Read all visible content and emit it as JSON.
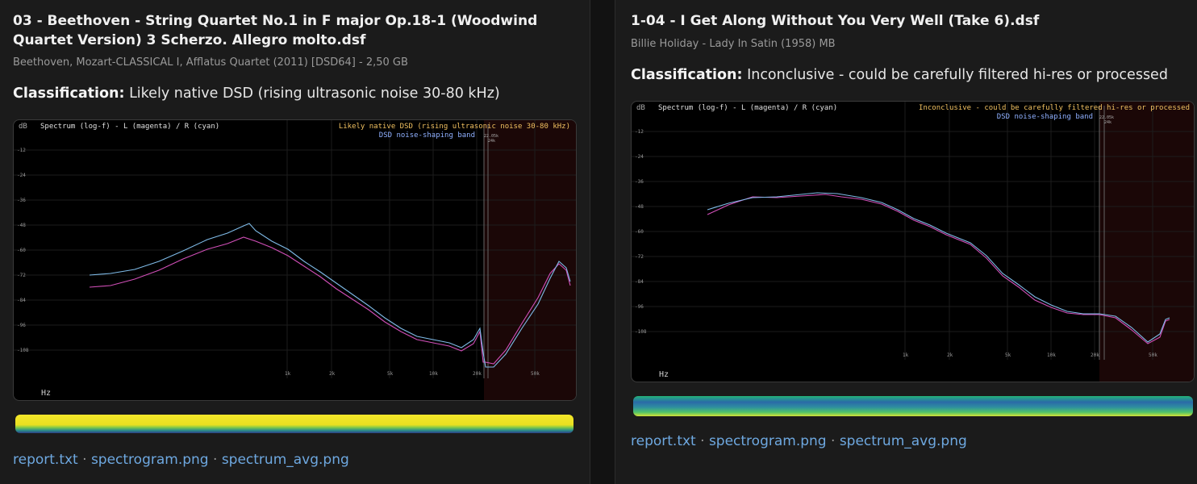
{
  "cards": [
    {
      "title": "03 - Beethoven - String Quartet No.1 in F major Op.18-1 (Woodwind Quartet Version) 3 Scherzo. Allegro molto.dsf",
      "meta": "Beethoven, Mozart-CLASSICAL I, Afflatus Quartet (2011) [DSD64] - 2,50 GB",
      "classification_label": "Classification:",
      "classification_value": "Likely native DSD (rising ultrasonic noise 30-80 kHz)",
      "spectrum": {
        "header": "Spectrum (log-f) - L (magenta) / R (cyan)",
        "verdict": "Likely native DSD (rising ultrasonic noise 30-80 kHz)",
        "band_label": "DSD noise-shaping band",
        "unit_y": "dB",
        "unit_x": "Hz",
        "y_ticks": [
          "-12",
          "-24",
          "-36",
          "-48",
          "-60",
          "-72",
          "-84",
          "-96",
          "-108"
        ],
        "x_ticks": [
          "1k",
          "2k",
          "5k",
          "10k",
          "20k",
          "50k"
        ],
        "marker_1": "22.05k",
        "marker_2": "24k"
      },
      "links": [
        "report.txt",
        "spectrogram.png",
        "spectrum_avg.png"
      ]
    },
    {
      "title": "1-04 - I Get Along Without You Very Well (Take 6).dsf",
      "meta": "Billie Holiday - Lady In Satin (1958) MB",
      "classification_label": "Classification:",
      "classification_value": "Inconclusive - could be carefully filtered hi-res or processed",
      "spectrum": {
        "header": "Spectrum (log-f) - L (magenta) / R (cyan)",
        "verdict": "Inconclusive - could be carefully filtered hi-res or processed",
        "band_label": "DSD noise-shaping band",
        "unit_y": "dB",
        "unit_x": "Hz",
        "y_ticks": [
          "-12",
          "-24",
          "-36",
          "-48",
          "-60",
          "-72",
          "-84",
          "-96",
          "-108"
        ],
        "x_ticks": [
          "1k",
          "2k",
          "5k",
          "10k",
          "20k",
          "50k"
        ],
        "marker_1": "22.05k",
        "marker_2": "24k"
      },
      "links": [
        "report.txt",
        "spectrogram.png",
        "spectrum_avg.png"
      ]
    }
  ],
  "link_separator": " · ",
  "colors": {
    "left_channel": "#d14fb8",
    "right_channel": "#7fbbe8",
    "verdict_text": "#f0c060",
    "band_text": "#8fb0ff",
    "link": "#6ea8e0"
  }
}
